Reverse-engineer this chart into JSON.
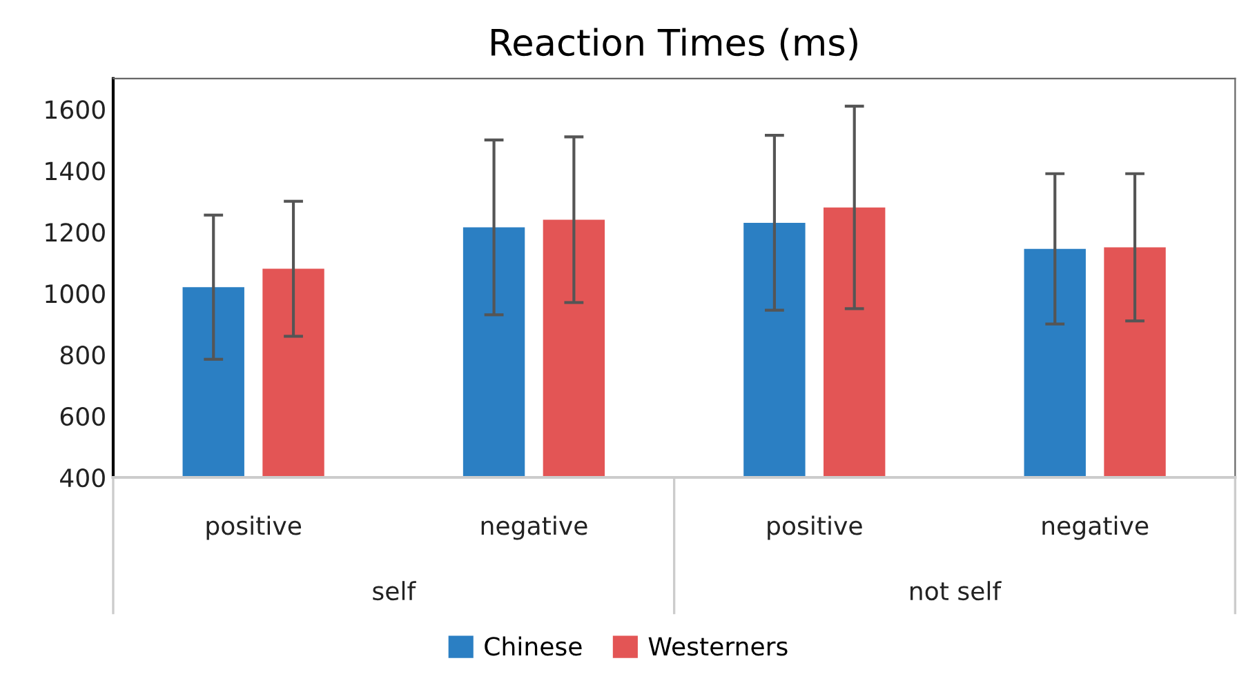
{
  "chart_data": {
    "type": "bar",
    "title": "Reaction Times (ms)",
    "categories": [
      "positive",
      "negative",
      "positive",
      "negative"
    ],
    "annotations": [
      "self",
      "not self"
    ],
    "series": [
      {
        "name": "Chinese",
        "color": "#2b7fc3",
        "values": [
          1020,
          1215,
          1230,
          1145
        ],
        "errors": [
          235,
          285,
          285,
          245
        ]
      },
      {
        "name": "Westerners",
        "color": "#e35555",
        "values": [
          1080,
          1240,
          1280,
          1150
        ],
        "errors": [
          220,
          270,
          330,
          240
        ]
      }
    ],
    "ylim": [
      400,
      1700
    ],
    "yticks": [
      400,
      600,
      800,
      1000,
      1200,
      1400,
      1600
    ],
    "grid": false,
    "legend": "bottom"
  }
}
